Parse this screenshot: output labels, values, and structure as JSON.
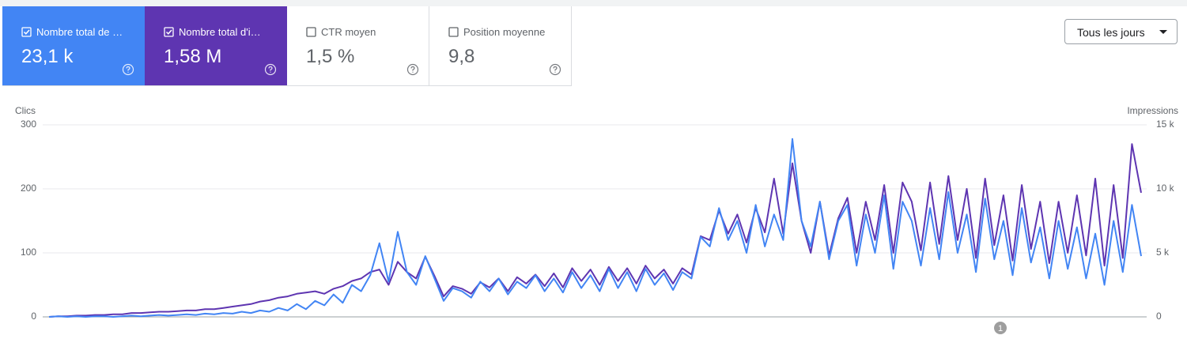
{
  "cards": [
    {
      "label": "Nombre total de clics",
      "value": "23,1 k",
      "checked": true,
      "color": "#4285f4"
    },
    {
      "label": "Nombre total d'impressions",
      "value": "1,58 M",
      "checked": true,
      "color": "#5e35b1"
    },
    {
      "label": "CTR moyen",
      "value": "1,5 %",
      "checked": false,
      "color": "#ffffff"
    },
    {
      "label": "Position moyenne",
      "value": "9,8",
      "checked": false,
      "color": "#ffffff"
    }
  ],
  "dropdown": "Tous les jours",
  "chart_data": {
    "type": "line",
    "ylabel": "Clics",
    "y2label": "Impressions",
    "annotation": "1",
    "categories": [
      null,
      null,
      null,
      null,
      null,
      null,
      null,
      null,
      null,
      null,
      null,
      null,
      null,
      null,
      null,
      null,
      null,
      null,
      null,
      null,
      null,
      null,
      null,
      null,
      null,
      null,
      null,
      null,
      null,
      null,
      null,
      null,
      null,
      null,
      null,
      null,
      null,
      null,
      null,
      null,
      null,
      null,
      null,
      null,
      null,
      null,
      null,
      null,
      null,
      null,
      null,
      null,
      null,
      null,
      null,
      null,
      null,
      null,
      null,
      null,
      null,
      null,
      null,
      null,
      null,
      null,
      null,
      null,
      null,
      null,
      null,
      null,
      null,
      null,
      null,
      null,
      null,
      null,
      null,
      null,
      null,
      null,
      null,
      null,
      null,
      null,
      null,
      null,
      null,
      null,
      null,
      null,
      null,
      null,
      null,
      null,
      null,
      null,
      null,
      null,
      null,
      null,
      null,
      null,
      null,
      null,
      null,
      null,
      null,
      null,
      null,
      null,
      null,
      null,
      null,
      null,
      null,
      null,
      null,
      null
    ],
    "series": [
      {
        "name": "Impressions",
        "color": "#5e35b1",
        "axis": "y2",
        "values": [
          0,
          50,
          50,
          100,
          100,
          150,
          150,
          200,
          200,
          300,
          300,
          350,
          400,
          400,
          450,
          500,
          500,
          600,
          600,
          700,
          800,
          900,
          1000,
          1200,
          1300,
          1500,
          1600,
          1800,
          1900,
          2000,
          1800,
          2200,
          2400,
          2800,
          3000,
          3500,
          3700,
          2500,
          4300,
          3500,
          3000,
          4700,
          3200,
          1600,
          2400,
          2200,
          1800,
          2700,
          2300,
          3000,
          2000,
          3100,
          2600,
          3300,
          2400,
          3400,
          2300,
          3800,
          2800,
          3700,
          2500,
          3900,
          2800,
          3800,
          2600,
          4000,
          3000,
          3700,
          2600,
          3800,
          3300,
          6300,
          6000,
          8300,
          6500,
          8000,
          5800,
          8500,
          6600,
          10800,
          6500,
          12000,
          7500,
          5000,
          9000,
          4800,
          7700,
          9300,
          5000,
          9000,
          6000,
          10300,
          5000,
          10500,
          9000,
          5200,
          10500,
          5700,
          11000,
          6000,
          10000,
          4600,
          10800,
          5600,
          9500,
          4400,
          10300,
          5300,
          9000,
          4200,
          9000,
          5000,
          9500,
          4800,
          10800,
          4000,
          10300,
          4600,
          13500,
          9700
        ]
      },
      {
        "name": "Clics",
        "color": "#4285f4",
        "values": [
          0,
          1,
          0,
          1,
          0,
          1,
          1,
          0,
          1,
          2,
          1,
          2,
          3,
          2,
          3,
          4,
          3,
          5,
          4,
          6,
          5,
          8,
          6,
          10,
          8,
          14,
          10,
          20,
          12,
          25,
          18,
          35,
          22,
          50,
          40,
          65,
          115,
          55,
          133,
          70,
          50,
          95,
          60,
          25,
          45,
          40,
          30,
          55,
          40,
          60,
          35,
          55,
          45,
          65,
          40,
          60,
          38,
          70,
          45,
          65,
          40,
          75,
          45,
          70,
          40,
          75,
          50,
          68,
          42,
          70,
          60,
          125,
          110,
          170,
          120,
          150,
          100,
          175,
          110,
          160,
          120,
          278,
          150,
          110,
          180,
          90,
          150,
          175,
          80,
          160,
          100,
          190,
          75,
          180,
          150,
          80,
          170,
          90,
          195,
          100,
          160,
          70,
          185,
          90,
          150,
          65,
          170,
          85,
          140,
          60,
          150,
          75,
          140,
          60,
          130,
          50,
          150,
          70,
          175,
          95
        ]
      }
    ],
    "ylim": [
      0,
      300
    ],
    "yticks": [
      0,
      100,
      200,
      300
    ],
    "y2lim": [
      0,
      15000
    ],
    "y2ticks": [
      0,
      {
        "value": 5000,
        "label": "5 k"
      },
      {
        "value": 10000,
        "label": "10 k"
      },
      {
        "value": 15000,
        "label": "15 k"
      }
    ],
    "grid": true
  }
}
